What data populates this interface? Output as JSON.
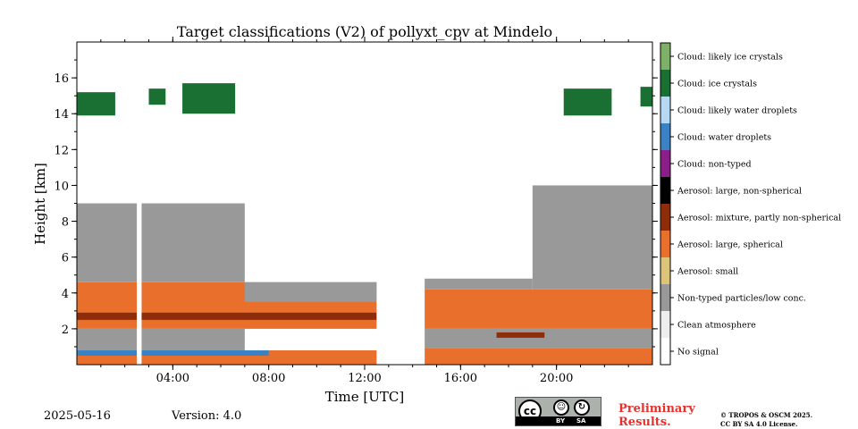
{
  "chart_data": {
    "type": "heatmap",
    "title": "Target classifications (V2) of pollyxt_cpv at Mindelo",
    "xlabel": "Time [UTC]",
    "ylabel": "Height [km]",
    "xlim": [
      0,
      24
    ],
    "ylim": [
      0,
      18
    ],
    "xticks": [
      {
        "value": 4,
        "label": "04:00"
      },
      {
        "value": 8,
        "label": "08:00"
      },
      {
        "value": 12,
        "label": "12:00"
      },
      {
        "value": 16,
        "label": "16:00"
      },
      {
        "value": 20,
        "label": "20:00"
      }
    ],
    "yticks": [
      {
        "value": 2,
        "label": "2"
      },
      {
        "value": 4,
        "label": "4"
      },
      {
        "value": 6,
        "label": "6"
      },
      {
        "value": 8,
        "label": "8"
      },
      {
        "value": 10,
        "label": "10"
      },
      {
        "value": 12,
        "label": "12"
      },
      {
        "value": 14,
        "label": "14"
      },
      {
        "value": 16,
        "label": "16"
      }
    ],
    "classes": [
      {
        "label": "No signal",
        "color": "#ffffff"
      },
      {
        "label": "Clean atmosphere",
        "color": "#eeeeee"
      },
      {
        "label": "Non-typed particles/low conc.",
        "color": "#999999"
      },
      {
        "label": "Aerosol: small",
        "color": "#dcc47a"
      },
      {
        "label": "Aerosol: large, spherical",
        "color": "#e8702c"
      },
      {
        "label": "Aerosol: mixture, partly non-spherical",
        "color": "#8e2d0b"
      },
      {
        "label": "Aerosol: large, non-spherical",
        "color": "#000000"
      },
      {
        "label": "Cloud: non-typed",
        "color": "#8b1f8a"
      },
      {
        "label": "Cloud: water droplets",
        "color": "#3a82c4"
      },
      {
        "label": "Cloud: likely water droplets",
        "color": "#b7d8f3"
      },
      {
        "label": "Cloud: ice crystals",
        "color": "#1a7032"
      },
      {
        "label": "Cloud: likely ice crystals",
        "color": "#7fb067"
      }
    ],
    "no_data_gaps_utc": [
      [
        2.5,
        2.7
      ],
      [
        12.5,
        14.5
      ]
    ],
    "layers": [
      {
        "class": "Aerosol: large, spherical",
        "from_h": 0.0,
        "to_h": 12.5,
        "bottom_km": 0.0,
        "top_km": 0.8
      },
      {
        "class": "Aerosol: large, spherical",
        "from_h": 14.5,
        "to_h": 24.0,
        "bottom_km": 0.0,
        "top_km": 0.9
      },
      {
        "class": "Non-typed particles/low conc.",
        "from_h": 0.0,
        "to_h": 7.0,
        "bottom_km": 0.8,
        "top_km": 2.0
      },
      {
        "class": "Aerosol: large, spherical",
        "from_h": 0.0,
        "to_h": 12.5,
        "bottom_km": 2.0,
        "top_km": 4.6
      },
      {
        "class": "Aerosol: mixture, partly non-spherical",
        "from_h": 0.0,
        "to_h": 12.5,
        "bottom_km": 2.5,
        "top_km": 2.9
      },
      {
        "class": "Non-typed particles/low conc.",
        "from_h": 0.0,
        "to_h": 7.0,
        "bottom_km": 4.6,
        "top_km": 9.0
      },
      {
        "class": "Non-typed particles/low conc.",
        "from_h": 7.0,
        "to_h": 12.5,
        "bottom_km": 3.5,
        "top_km": 4.6
      },
      {
        "class": "Non-typed particles/low conc.",
        "from_h": 14.5,
        "to_h": 24.0,
        "bottom_km": 0.9,
        "top_km": 2.0
      },
      {
        "class": "Aerosol: large, spherical",
        "from_h": 14.5,
        "to_h": 24.0,
        "bottom_km": 2.0,
        "top_km": 4.2
      },
      {
        "class": "Aerosol: mixture, partly non-spherical",
        "from_h": 17.5,
        "to_h": 19.5,
        "bottom_km": 1.5,
        "top_km": 1.8
      },
      {
        "class": "Non-typed particles/low conc.",
        "from_h": 14.5,
        "to_h": 19.0,
        "bottom_km": 4.2,
        "top_km": 4.8
      },
      {
        "class": "Non-typed particles/low conc.",
        "from_h": 19.0,
        "to_h": 24.0,
        "bottom_km": 4.2,
        "top_km": 10.0
      },
      {
        "class": "Cloud: water droplets",
        "from_h": 0.0,
        "to_h": 8.0,
        "bottom_km": 0.5,
        "top_km": 0.8
      },
      {
        "class": "Cloud: ice crystals",
        "from_h": 0.0,
        "to_h": 1.6,
        "bottom_km": 13.9,
        "top_km": 15.2
      },
      {
        "class": "Cloud: ice crystals",
        "from_h": 3.0,
        "to_h": 3.7,
        "bottom_km": 14.5,
        "top_km": 15.4
      },
      {
        "class": "Cloud: ice crystals",
        "from_h": 4.4,
        "to_h": 6.6,
        "bottom_km": 14.0,
        "top_km": 15.7
      },
      {
        "class": "Cloud: ice crystals",
        "from_h": 20.3,
        "to_h": 22.3,
        "bottom_km": 13.9,
        "top_km": 15.4
      },
      {
        "class": "Cloud: ice crystals",
        "from_h": 23.5,
        "to_h": 24.0,
        "bottom_km": 14.4,
        "top_km": 15.5
      }
    ]
  },
  "footer": {
    "date": "2025-05-16",
    "version": "Version: 4.0",
    "preliminary_line1": "Preliminary",
    "preliminary_line2": "Results.",
    "copyright_line1": "© TROPOS & OSCM 2025.",
    "copyright_line2": "CC BY SA 4.0 License.",
    "badge_cc": "cc",
    "badge_by": "BY",
    "badge_sa": "SA"
  }
}
